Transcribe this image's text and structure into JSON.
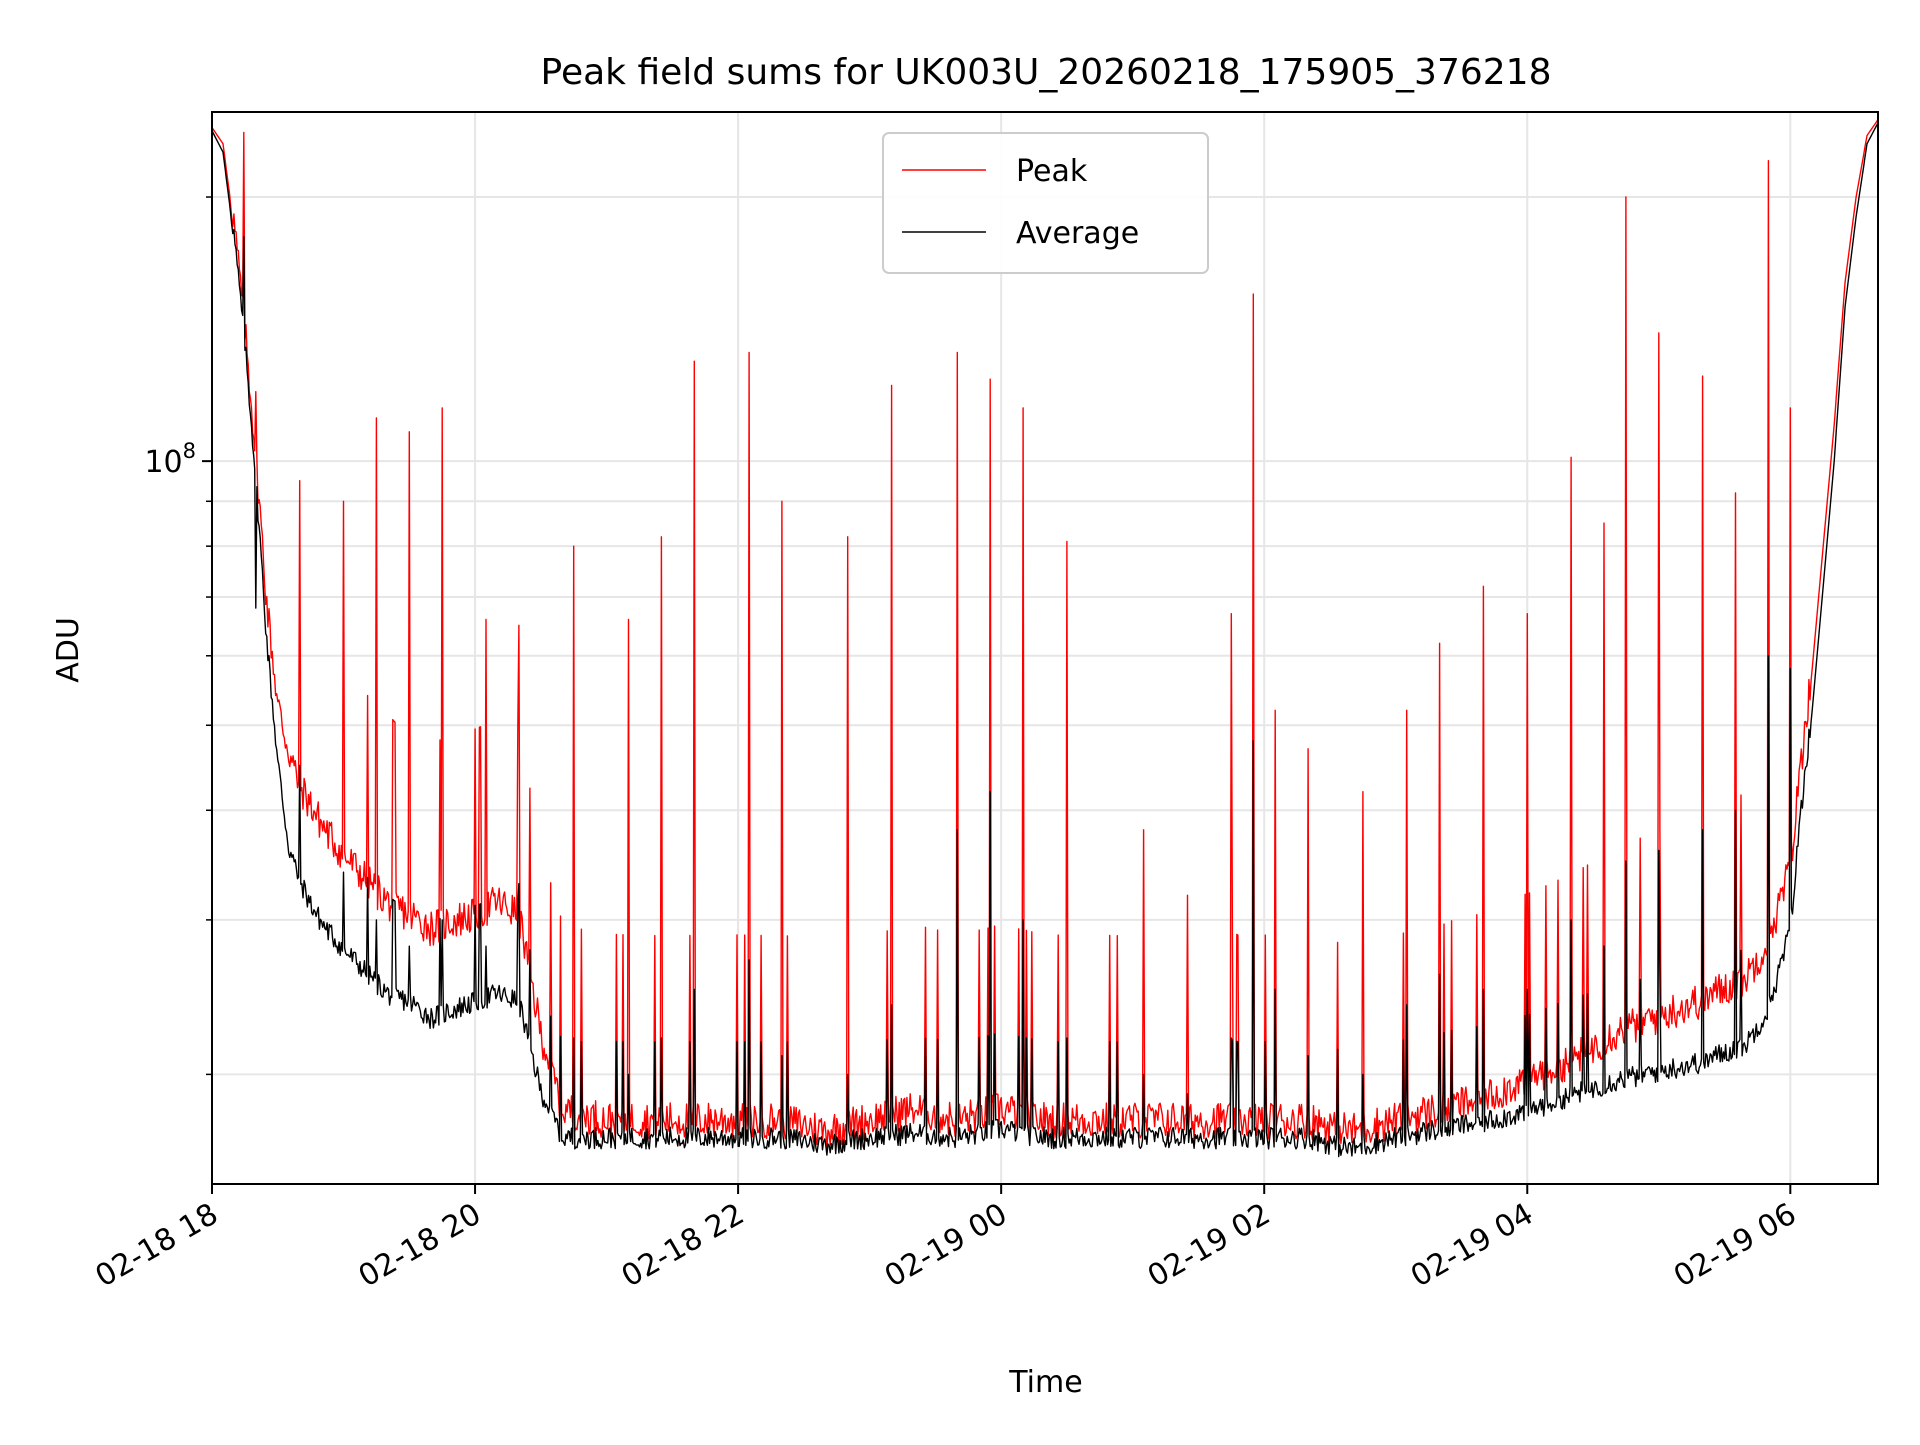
{
  "chart_data": {
    "type": "line",
    "title": "Peak field sums for UK003U_20260218_175905_376218",
    "xlabel": "Time",
    "ylabel": "ADU",
    "x_scale": "time",
    "y_scale": "log",
    "x_range": [
      "2026-02-18 18:00",
      "2026-02-19 06:40"
    ],
    "ylim": [
      15000000,
      250000000
    ],
    "grid": true,
    "legend": {
      "position": "top-center",
      "entries": [
        "Peak",
        "Average"
      ]
    },
    "x_ticks": [
      {
        "label": "02-18 18",
        "time": "2026-02-18 18:00"
      },
      {
        "label": "02-18 20",
        "time": "2026-02-18 20:00"
      },
      {
        "label": "02-18 22",
        "time": "2026-02-18 22:00"
      },
      {
        "label": "02-19 00",
        "time": "2026-02-19 00:00"
      },
      {
        "label": "02-19 02",
        "time": "2026-02-19 02:00"
      },
      {
        "label": "02-19 04",
        "time": "2026-02-19 04:00"
      },
      {
        "label": "02-19 06",
        "time": "2026-02-19 06:00"
      }
    ],
    "y_major_ticks": [
      {
        "label_base": "10",
        "label_exp": "8",
        "value": 100000000
      }
    ],
    "y_minor_ticks": [
      20000000,
      30000000,
      40000000,
      50000000,
      60000000,
      70000000,
      80000000,
      90000000,
      200000000
    ],
    "series": [
      {
        "name": "Peak",
        "color": "#ff0000",
        "x": [
          "2026-02-18 18:00",
          "2026-02-18 18:05",
          "2026-02-18 18:10",
          "2026-02-18 18:15",
          "2026-02-18 18:20",
          "2026-02-18 18:25",
          "2026-02-18 18:30",
          "2026-02-18 18:35",
          "2026-02-18 18:40",
          "2026-02-18 18:45",
          "2026-02-18 18:50",
          "2026-02-18 19:00",
          "2026-02-18 19:10",
          "2026-02-18 19:20",
          "2026-02-18 19:30",
          "2026-02-18 19:40",
          "2026-02-18 19:50",
          "2026-02-18 20:00",
          "2026-02-18 20:10",
          "2026-02-18 20:20",
          "2026-02-18 20:30",
          "2026-02-18 20:40",
          "2026-02-18 21:00",
          "2026-02-18 21:20",
          "2026-02-18 21:40",
          "2026-02-18 22:00",
          "2026-02-18 22:20",
          "2026-02-18 22:40",
          "2026-02-18 23:00",
          "2026-02-18 23:20",
          "2026-02-18 23:40",
          "2026-02-19 00:00",
          "2026-02-19 00:20",
          "2026-02-19 00:40",
          "2026-02-19 01:00",
          "2026-02-19 01:20",
          "2026-02-19 01:40",
          "2026-02-19 02:00",
          "2026-02-19 02:20",
          "2026-02-19 02:40",
          "2026-02-19 03:00",
          "2026-02-19 03:20",
          "2026-02-19 03:40",
          "2026-02-19 04:00",
          "2026-02-19 04:20",
          "2026-02-19 04:40",
          "2026-02-19 05:00",
          "2026-02-19 05:20",
          "2026-02-19 05:40",
          "2026-02-19 05:50",
          "2026-02-19 06:00",
          "2026-02-19 06:05",
          "2026-02-19 06:10",
          "2026-02-19 06:15",
          "2026-02-19 06:20",
          "2026-02-19 06:25",
          "2026-02-19 06:30",
          "2026-02-19 06:35",
          "2026-02-19 06:40"
        ],
        "y": [
          240000000,
          230000000,
          185000000,
          140000000,
          100000000,
          68000000,
          52000000,
          46000000,
          42000000,
          40000000,
          38000000,
          35000000,
          33000000,
          31000000,
          30000000,
          29000000,
          29500000,
          30000000,
          31000000,
          30000000,
          22000000,
          18000000,
          17500000,
          17500000,
          17500000,
          17500000,
          17500000,
          17000000,
          17500000,
          18000000,
          17500000,
          18000000,
          17500000,
          17500000,
          17500000,
          17500000,
          17500000,
          17500000,
          17500000,
          17000000,
          17500000,
          18000000,
          18500000,
          19500000,
          20500000,
          22000000,
          23000000,
          24000000,
          25500000,
          28000000,
          34000000,
          45000000,
          58000000,
          80000000,
          110000000,
          160000000,
          200000000,
          235000000,
          245000000
        ]
      },
      {
        "name": "Average",
        "color": "#000000",
        "x": [
          "2026-02-18 18:00",
          "2026-02-18 18:05",
          "2026-02-18 18:10",
          "2026-02-18 18:15",
          "2026-02-18 18:20",
          "2026-02-18 18:25",
          "2026-02-18 18:30",
          "2026-02-18 18:35",
          "2026-02-18 18:40",
          "2026-02-18 18:45",
          "2026-02-18 18:50",
          "2026-02-18 19:00",
          "2026-02-18 19:10",
          "2026-02-18 19:20",
          "2026-02-18 19:30",
          "2026-02-18 19:40",
          "2026-02-18 19:50",
          "2026-02-18 20:00",
          "2026-02-18 20:10",
          "2026-02-18 20:20",
          "2026-02-18 20:30",
          "2026-02-18 20:40",
          "2026-02-18 21:00",
          "2026-02-18 21:20",
          "2026-02-18 21:40",
          "2026-02-18 22:00",
          "2026-02-18 22:20",
          "2026-02-18 22:40",
          "2026-02-18 23:00",
          "2026-02-18 23:20",
          "2026-02-18 23:40",
          "2026-02-19 00:00",
          "2026-02-19 00:20",
          "2026-02-19 00:40",
          "2026-02-19 01:00",
          "2026-02-19 01:20",
          "2026-02-19 01:40",
          "2026-02-19 02:00",
          "2026-02-19 02:20",
          "2026-02-19 02:40",
          "2026-02-19 03:00",
          "2026-02-19 03:20",
          "2026-02-19 03:40",
          "2026-02-19 04:00",
          "2026-02-19 04:20",
          "2026-02-19 04:40",
          "2026-02-19 05:00",
          "2026-02-19 05:20",
          "2026-02-19 05:40",
          "2026-02-19 05:50",
          "2026-02-19 06:00",
          "2026-02-19 06:05",
          "2026-02-19 06:10",
          "2026-02-19 06:15",
          "2026-02-19 06:20",
          "2026-02-19 06:25",
          "2026-02-19 06:30",
          "2026-02-19 06:35",
          "2026-02-19 06:40"
        ],
        "y": [
          238000000,
          225000000,
          180000000,
          135000000,
          95000000,
          62000000,
          45000000,
          36000000,
          33000000,
          31000000,
          29500000,
          27500000,
          26000000,
          24500000,
          24000000,
          23000000,
          23500000,
          24000000,
          24500000,
          24000000,
          19000000,
          16800000,
          16800000,
          16800000,
          16800000,
          16800000,
          16800000,
          16500000,
          16800000,
          17000000,
          16800000,
          17200000,
          16800000,
          16800000,
          16800000,
          16800000,
          16800000,
          16800000,
          16800000,
          16300000,
          16800000,
          17200000,
          17500000,
          18000000,
          18800000,
          19500000,
          20000000,
          20500000,
          21500000,
          23500000,
          29000000,
          40000000,
          52000000,
          72000000,
          100000000,
          150000000,
          190000000,
          230000000,
          243000000
        ]
      }
    ],
    "spikes": [
      {
        "time": "2026-02-18 18:20",
        "peak": 120000000,
        "avg": 68000000
      },
      {
        "time": "2026-02-18 18:40",
        "peak": 95000000,
        "avg": 45000000
      },
      {
        "time": "2026-02-18 19:00",
        "peak": 90000000,
        "avg": 34000000
      },
      {
        "time": "2026-02-18 19:15",
        "peak": 112000000,
        "avg": 30000000
      },
      {
        "time": "2026-02-18 19:30",
        "peak": 108000000,
        "avg": 28000000
      },
      {
        "time": "2026-02-18 19:45",
        "peak": 115000000,
        "avg": 30000000
      },
      {
        "time": "2026-02-18 20:05",
        "peak": 66000000,
        "avg": 28000000
      },
      {
        "time": "2026-02-18 20:20",
        "peak": 65000000,
        "avg": 33000000
      },
      {
        "time": "2026-02-18 20:45",
        "peak": 80000000,
        "avg": 22000000
      },
      {
        "time": "2026-02-18 21:10",
        "peak": 66000000,
        "avg": 20000000
      },
      {
        "time": "2026-02-18 21:25",
        "peak": 82000000,
        "avg": 22000000
      },
      {
        "time": "2026-02-18 21:40",
        "peak": 130000000,
        "avg": 25000000
      },
      {
        "time": "2026-02-18 22:05",
        "peak": 133000000,
        "avg": 27000000
      },
      {
        "time": "2026-02-18 22:20",
        "peak": 90000000,
        "avg": 21000000
      },
      {
        "time": "2026-02-18 22:50",
        "peak": 82000000,
        "avg": 20000000
      },
      {
        "time": "2026-02-18 23:10",
        "peak": 122000000,
        "avg": 24000000
      },
      {
        "time": "2026-02-18 23:40",
        "peak": 133000000,
        "avg": 38000000
      },
      {
        "time": "2026-02-18 23:55",
        "peak": 124000000,
        "avg": 42000000
      },
      {
        "time": "2026-02-19 00:10",
        "peak": 115000000,
        "avg": 30000000
      },
      {
        "time": "2026-02-19 00:30",
        "peak": 81000000,
        "avg": 22000000
      },
      {
        "time": "2026-02-19 01:05",
        "peak": 38000000,
        "avg": 20000000
      },
      {
        "time": "2026-02-19 01:25",
        "peak": 32000000,
        "avg": 19000000
      },
      {
        "time": "2026-02-19 01:45",
        "peak": 67000000,
        "avg": 22000000
      },
      {
        "time": "2026-02-19 01:55",
        "peak": 155000000,
        "avg": 48000000
      },
      {
        "time": "2026-02-19 02:05",
        "peak": 52000000,
        "avg": 25000000
      },
      {
        "time": "2026-02-19 02:20",
        "peak": 47000000,
        "avg": 21000000
      },
      {
        "time": "2026-02-19 02:45",
        "peak": 42000000,
        "avg": 20000000
      },
      {
        "time": "2026-02-19 03:05",
        "peak": 52000000,
        "avg": 24000000
      },
      {
        "time": "2026-02-19 03:20",
        "peak": 62000000,
        "avg": 26000000
      },
      {
        "time": "2026-02-19 03:40",
        "peak": 72000000,
        "avg": 25000000
      },
      {
        "time": "2026-02-19 04:00",
        "peak": 67000000,
        "avg": 25000000
      },
      {
        "time": "2026-02-19 04:20",
        "peak": 101000000,
        "avg": 30000000
      },
      {
        "time": "2026-02-19 04:35",
        "peak": 85000000,
        "avg": 28000000
      },
      {
        "time": "2026-02-19 04:45",
        "peak": 200000000,
        "avg": 35000000
      },
      {
        "time": "2026-02-19 05:00",
        "peak": 140000000,
        "avg": 36000000
      },
      {
        "time": "2026-02-19 05:20",
        "peak": 125000000,
        "avg": 38000000
      },
      {
        "time": "2026-02-19 05:35",
        "peak": 92000000,
        "avg": 40000000
      },
      {
        "time": "2026-02-19 05:50",
        "peak": 220000000,
        "avg": 60000000
      },
      {
        "time": "2026-02-19 06:00",
        "peak": 115000000,
        "avg": 58000000
      }
    ]
  }
}
